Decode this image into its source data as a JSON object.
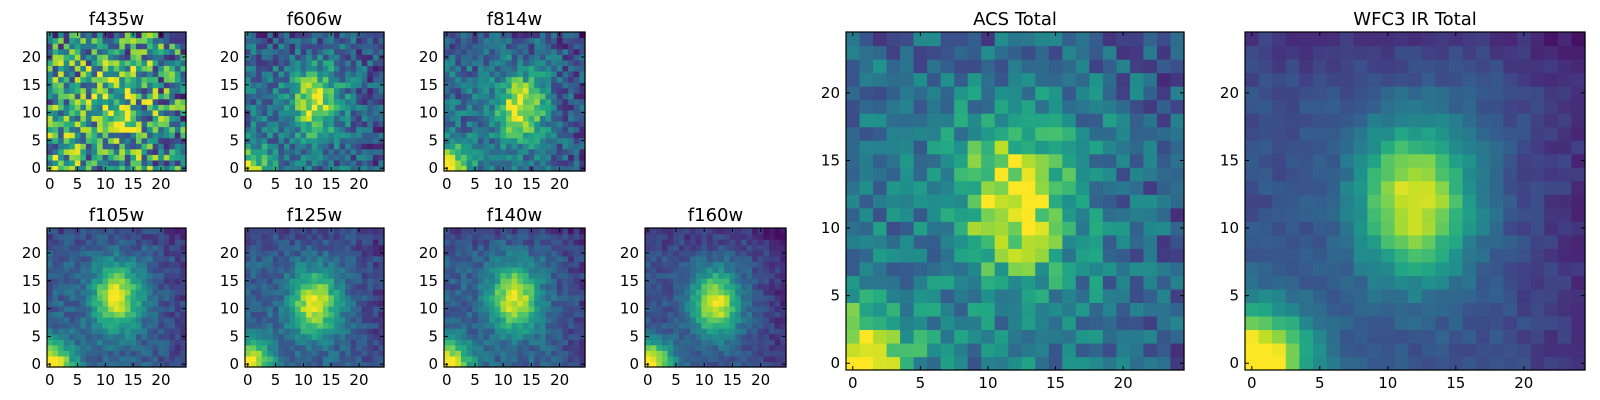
{
  "colormap": "viridis",
  "chart_data": [
    {
      "type": "heatmap",
      "title": "f435w",
      "grid_size": 25,
      "xlim": [
        0,
        25
      ],
      "ylim": [
        0,
        25
      ],
      "x_ticks": [
        "0",
        "5",
        "10",
        "15",
        "20"
      ],
      "y_ticks": [
        "0",
        "5",
        "10",
        "15",
        "20"
      ],
      "blob_center": [
        12,
        11
      ],
      "peak": 0.55,
      "noise": 0.42,
      "background": 0.55,
      "corner_glow": 0.15
    },
    {
      "type": "heatmap",
      "title": "f606w",
      "grid_size": 25,
      "xlim": [
        0,
        25
      ],
      "ylim": [
        0,
        25
      ],
      "x_ticks": [
        "0",
        "5",
        "10",
        "15",
        "20"
      ],
      "y_ticks": [
        "0",
        "5",
        "10",
        "15",
        "20"
      ],
      "blob_center": [
        12,
        12
      ],
      "peak": 0.9,
      "noise": 0.2,
      "background": 0.35,
      "corner_glow": 0.5
    },
    {
      "type": "heatmap",
      "title": "f814w",
      "grid_size": 25,
      "xlim": [
        0,
        25
      ],
      "ylim": [
        0,
        25
      ],
      "x_ticks": [
        "0",
        "5",
        "10",
        "15",
        "20"
      ],
      "y_ticks": [
        "0",
        "5",
        "10",
        "15",
        "20"
      ],
      "blob_center": [
        13,
        11
      ],
      "peak": 0.95,
      "noise": 0.18,
      "background": 0.35,
      "corner_glow": 0.65
    },
    {
      "type": "heatmap",
      "title": "f105w",
      "grid_size": 25,
      "xlim": [
        0,
        25
      ],
      "ylim": [
        0,
        25
      ],
      "x_ticks": [
        "0",
        "5",
        "10",
        "15",
        "20"
      ],
      "y_ticks": [
        "0",
        "5",
        "10",
        "15",
        "20"
      ],
      "blob_center": [
        12,
        12
      ],
      "peak": 0.95,
      "noise": 0.1,
      "background": 0.3,
      "corner_glow": 0.75
    },
    {
      "type": "heatmap",
      "title": "f125w",
      "grid_size": 25,
      "xlim": [
        0,
        25
      ],
      "ylim": [
        0,
        25
      ],
      "x_ticks": [
        "0",
        "5",
        "10",
        "15",
        "20"
      ],
      "y_ticks": [
        "0",
        "5",
        "10",
        "15",
        "20"
      ],
      "blob_center": [
        12,
        11
      ],
      "peak": 0.95,
      "noise": 0.1,
      "background": 0.3,
      "corner_glow": 0.75
    },
    {
      "type": "heatmap",
      "title": "f140w",
      "grid_size": 25,
      "xlim": [
        0,
        25
      ],
      "ylim": [
        0,
        25
      ],
      "x_ticks": [
        "0",
        "5",
        "10",
        "15",
        "20"
      ],
      "y_ticks": [
        "0",
        "5",
        "10",
        "15",
        "20"
      ],
      "blob_center": [
        12,
        12
      ],
      "peak": 0.95,
      "noise": 0.1,
      "background": 0.3,
      "corner_glow": 0.75
    },
    {
      "type": "heatmap",
      "title": "f160w",
      "grid_size": 25,
      "xlim": [
        0,
        25
      ],
      "ylim": [
        0,
        25
      ],
      "x_ticks": [
        "0",
        "5",
        "10",
        "15",
        "20"
      ],
      "y_ticks": [
        "0",
        "5",
        "10",
        "15",
        "20"
      ],
      "blob_center": [
        12,
        11
      ],
      "peak": 0.95,
      "noise": 0.08,
      "background": 0.25,
      "corner_glow": 0.85
    },
    {
      "type": "heatmap",
      "title": "ACS Total",
      "grid_size": 25,
      "xlim": [
        0,
        25
      ],
      "ylim": [
        0,
        25
      ],
      "x_ticks": [
        "0",
        "5",
        "10",
        "15",
        "20"
      ],
      "y_ticks": [
        "0",
        "5",
        "10",
        "15",
        "20"
      ],
      "blob_center": [
        12,
        12
      ],
      "peak": 0.95,
      "noise": 0.17,
      "background": 0.4,
      "corner_glow": 0.7
    },
    {
      "type": "heatmap",
      "title": "WFC3 IR Total",
      "grid_size": 25,
      "xlim": [
        0,
        25
      ],
      "ylim": [
        0,
        25
      ],
      "x_ticks": [
        "0",
        "5",
        "10",
        "15",
        "20"
      ],
      "y_ticks": [
        "0",
        "5",
        "10",
        "15",
        "20"
      ],
      "blob_center": [
        12,
        12
      ],
      "peak": 0.95,
      "noise": 0.05,
      "background": 0.25,
      "corner_glow": 0.9
    }
  ]
}
